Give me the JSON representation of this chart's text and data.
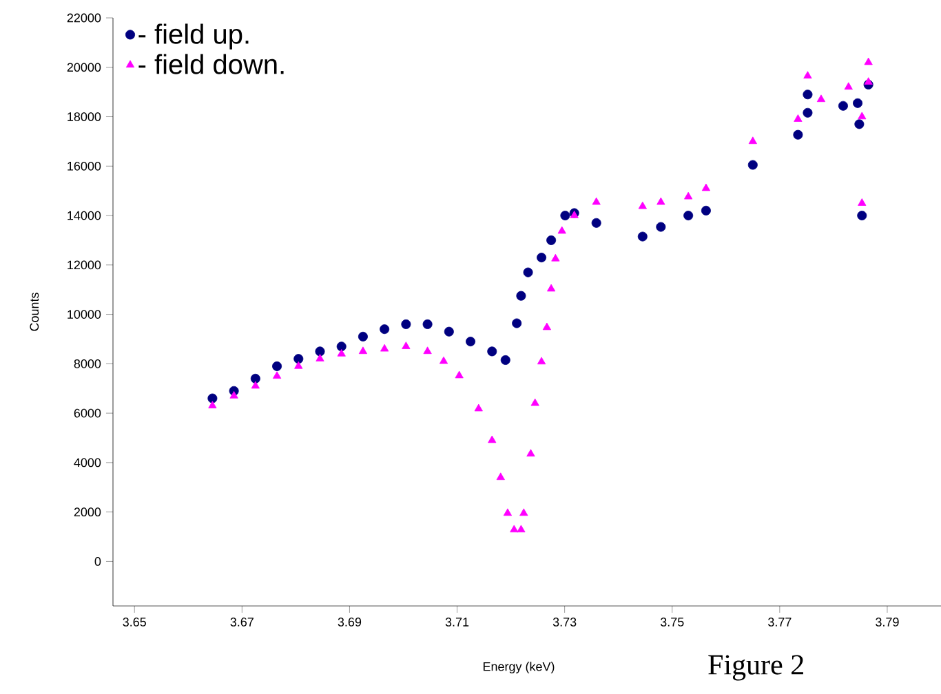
{
  "chart_data": {
    "type": "scatter",
    "xlabel": "Energy (keV)",
    "ylabel": "Counts",
    "annotations": [
      "Figure 2"
    ],
    "xlim": [
      3.646,
      3.8
    ],
    "xticks": [
      3.65,
      3.67,
      3.69,
      3.71,
      3.73,
      3.75,
      3.77,
      3.79
    ],
    "ylim": [
      -1800,
      22000
    ],
    "yticks": [
      0,
      2000,
      4000,
      6000,
      8000,
      10000,
      12000,
      14000,
      16000,
      18000,
      20000,
      22000
    ],
    "legend": "top left",
    "grid": false,
    "series": [
      {
        "name": "- field up.",
        "color": "#000080",
        "marker": "circle",
        "x": [
          3.6645,
          3.6685,
          3.6725,
          3.6765,
          3.6805,
          3.6845,
          3.6885,
          3.6925,
          3.6965,
          3.7005,
          3.7045,
          3.7085,
          3.7125,
          3.7165,
          3.719,
          3.7211,
          3.7219,
          3.7232,
          3.7257,
          3.7275,
          3.7301,
          3.7318,
          3.7359,
          3.7445,
          3.7479,
          3.753,
          3.7563,
          3.765,
          3.7734,
          3.7752,
          3.7752,
          3.7818,
          3.7845,
          3.7848,
          3.7853,
          3.7865
        ],
        "values": [
          6600,
          6900,
          7400,
          7900,
          8200,
          8500,
          8700,
          9100,
          9400,
          9600,
          9600,
          9300,
          8900,
          8500,
          8150,
          9640,
          10750,
          11700,
          12300,
          13000,
          14000,
          14100,
          13700,
          13150,
          13540,
          14000,
          14200,
          16050,
          17270,
          18160,
          18900,
          18440,
          18550,
          17700,
          14000,
          19300
        ]
      },
      {
        "name": "- field down.",
        "color": "#ff00ff",
        "marker": "triangle",
        "x": [
          3.6645,
          3.6685,
          3.6725,
          3.6765,
          3.6805,
          3.6845,
          3.6885,
          3.6925,
          3.6965,
          3.7005,
          3.7045,
          3.7075,
          3.7104,
          3.714,
          3.7165,
          3.7181,
          3.7194,
          3.7206,
          3.7219,
          3.7224,
          3.7237,
          3.7245,
          3.7257,
          3.7267,
          3.7275,
          3.7283,
          3.7295,
          3.7318,
          3.7359,
          3.7445,
          3.7479,
          3.753,
          3.7563,
          3.765,
          3.7734,
          3.7752,
          3.7777,
          3.7828,
          3.7853,
          3.7853,
          3.7865,
          3.7865
        ],
        "values": [
          6300,
          6700,
          7100,
          7500,
          7900,
          8200,
          8400,
          8500,
          8600,
          8700,
          8500,
          8100,
          7520,
          6180,
          4900,
          3400,
          1950,
          1280,
          1280,
          1950,
          4350,
          6400,
          8080,
          9470,
          11030,
          12250,
          13370,
          14000,
          14540,
          14370,
          14540,
          14760,
          15100,
          17000,
          17900,
          19650,
          18700,
          19200,
          18000,
          14500,
          19400,
          20200
        ]
      }
    ]
  }
}
